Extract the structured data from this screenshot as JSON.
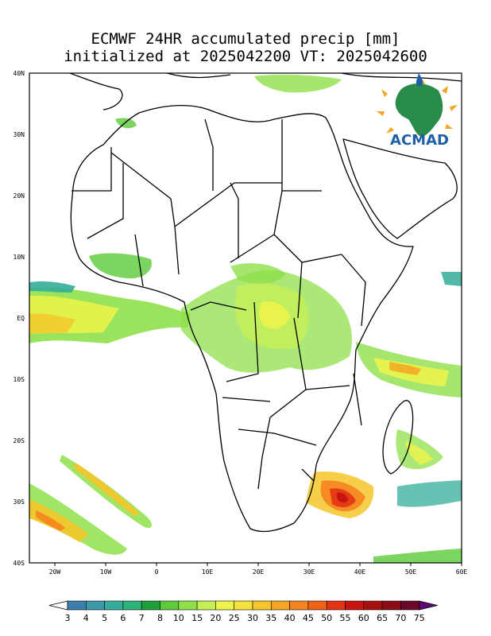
{
  "title": {
    "line1": "ECMWF 24HR accumulated precip [mm]",
    "line2": "initialized at 2025042200 VT: 2025042600"
  },
  "map": {
    "lon_ticks": [
      "20W",
      "10W",
      "0",
      "10E",
      "20E",
      "30E",
      "40E",
      "50E",
      "60E"
    ],
    "lat_ticks": [
      "40N",
      "30N",
      "20N",
      "10N",
      "EQ",
      "10S",
      "20S",
      "30S",
      "40S"
    ],
    "extent": {
      "lon": [
        -25,
        60
      ],
      "lat": [
        -40,
        40
      ]
    }
  },
  "logo": {
    "text": "ACMAD"
  },
  "colorbar": {
    "labels": [
      "3",
      "4",
      "5",
      "6",
      "7",
      "8",
      "10",
      "15",
      "20",
      "25",
      "30",
      "35",
      "40",
      "45",
      "50",
      "55",
      "60",
      "65",
      "70",
      "75"
    ],
    "colors": [
      "#3a7fb0",
      "#3c9aa8",
      "#34ad9a",
      "#2fb27a",
      "#1f9f3a",
      "#5ccb3a",
      "#8fe04a",
      "#c6ef55",
      "#eef54a",
      "#f5e23a",
      "#f5c52a",
      "#f5a524",
      "#f5841e",
      "#f06218",
      "#e23414",
      "#c81410",
      "#a8100e",
      "#8a0c18",
      "#6a0a28",
      "#5a0a70"
    ]
  }
}
